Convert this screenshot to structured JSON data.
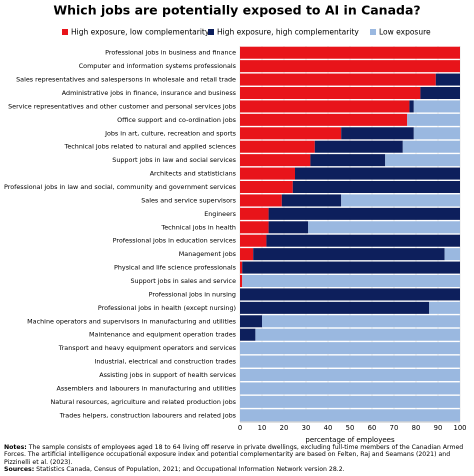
{
  "chart_data": {
    "type": "stacked-barh",
    "title": "Which jobs are potentially exposed to AI in Canada?",
    "xlabel": "percentage of employees",
    "categories": [
      "Professional jobs in business and finance",
      "Computer and information systems professionals",
      "Sales representatives and salespersons in wholesale and retail trade",
      "Administrative jobs in finance, insurance and business",
      "Service representatives and other customer and personal services jobs",
      "Office support and co-ordination jobs",
      "Jobs in art, culture, recreation and sports",
      "Technical jobs related to natural and applied sciences",
      "Support jobs in law and social services",
      "Architects and statisticians",
      "Professional jobs in law and social, community and government services",
      "Sales and service supervisors",
      "Engineers",
      "Technical jobs in health",
      "Professional jobs in education services",
      "Management jobs",
      "Physical and life science professionals",
      "Support jobs in sales and service",
      "Professional jobs in nursing",
      "Professional jobs in health (except nursing)",
      "Machine operators and supervisors in manufacturing and utilities",
      "Maintenance and equipment operation trades",
      "Transport and heavy equipment operators and services",
      "Industrial, electrical and construction trades",
      "Assisting jobs in support of health services",
      "Assemblers and labourers in manufacturing and utilities",
      "Natural resources, agriculture and related production jobs",
      "Trades helpers, construction labourers and related jobs"
    ],
    "series": [
      {
        "name": "High exposure, low complementarity",
        "color": "#e8141a",
        "values": [
          100,
          100,
          89,
          82,
          77,
          76,
          46,
          34,
          32,
          25,
          24,
          19,
          13,
          13,
          12,
          6,
          1,
          1,
          0,
          0,
          0,
          0,
          0,
          0,
          0,
          0,
          0,
          0
        ]
      },
      {
        "name": "High exposure, high complementarity",
        "color": "#0d1f5c",
        "values": [
          0,
          0,
          11,
          18,
          2,
          0,
          33,
          40,
          34,
          75,
          76,
          27,
          87,
          18,
          88,
          87,
          99,
          0,
          100,
          86,
          10,
          7,
          0,
          0,
          0,
          0,
          0,
          0
        ]
      },
      {
        "name": "Low exposure",
        "color": "#9ab8e0",
        "values": [
          0,
          0,
          0,
          0,
          21,
          24,
          21,
          26,
          34,
          0,
          0,
          54,
          0,
          69,
          0,
          7,
          0,
          99,
          0,
          14,
          90,
          93,
          100,
          100,
          100,
          100,
          100,
          100
        ]
      }
    ],
    "xlim": [
      0,
      100
    ],
    "xticks": [
      0,
      10,
      20,
      30,
      40,
      50,
      60,
      70,
      80,
      90,
      100
    ],
    "grid": true,
    "legend": "top",
    "notes_label": "Notes:",
    "notes": "The sample consists of employees aged 18 to 64 living off reserve in private dwellings, excluding full-time members of the Canadian Armed Forces. The artificial intelligence occupational exposure index and potential complementarity are based on Felten, Raj and Seamans (2021) and Pizzinelli et al. (2023).",
    "sources_label": "Sources:",
    "sources": "Statistics Canada, Census of Population, 2021; and Occupational Information Network version 28.2."
  }
}
